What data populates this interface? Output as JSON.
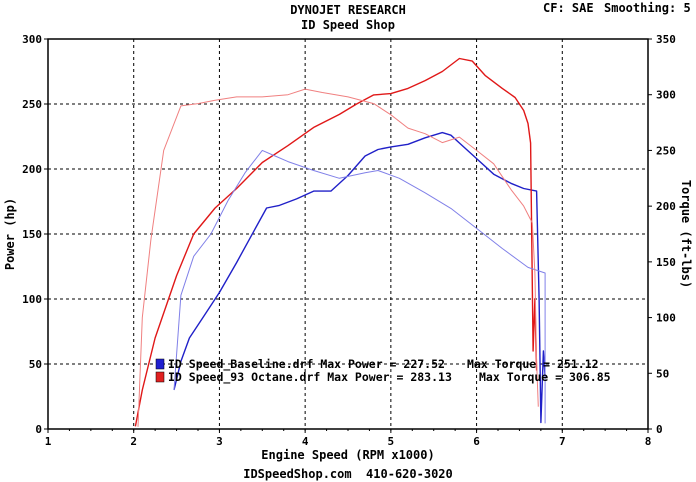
{
  "header": {
    "title": "DYNOJET RESEARCH",
    "subtitle": "ID Speed Shop",
    "correction": "CF: SAE",
    "smoothing": "Smoothing: 5"
  },
  "footer": {
    "text": "IDSpeedShop.com  410-620-3020"
  },
  "chart_data": {
    "type": "line",
    "title": "DYNOJET RESEARCH",
    "subtitle": "ID Speed Shop",
    "xlabel": "Engine Speed (RPM x1000)",
    "ylabel_left": "Power (hp)",
    "ylabel_right": "Torque (ft-lbs)",
    "xlim": [
      1,
      8
    ],
    "ylim_left": [
      0,
      300
    ],
    "ylim_right": [
      0,
      350
    ],
    "x_ticks": [
      "1",
      "2",
      "3",
      "4",
      "5",
      "6",
      "7",
      "8"
    ],
    "y_left_ticks": [
      "0",
      "50",
      "100",
      "150",
      "200",
      "250",
      "300"
    ],
    "y_right_ticks": [
      "0",
      "50",
      "100",
      "150",
      "200",
      "250",
      "300",
      "350"
    ],
    "grid": true,
    "legend_position": "bottom-left",
    "legend": [
      {
        "color": "#2020d0",
        "text": "ID Speed_Baseline.drf Max Power = 227.52",
        "torque": "Max Torque = 251.12"
      },
      {
        "color": "#e02020",
        "text": "ID Speed_93 Octane.drf Max Power = 283.13",
        "torque": "Max Torque = 306.85"
      }
    ],
    "series": [
      {
        "name": "ID Speed_Baseline.drf",
        "kind": "power",
        "axis": "left",
        "color": "#2020c8",
        "x": [
          2.47,
          2.55,
          2.65,
          2.8,
          3.0,
          3.2,
          3.4,
          3.55,
          3.7,
          3.9,
          4.1,
          4.3,
          4.5,
          4.7,
          4.85,
          5.0,
          5.2,
          5.4,
          5.6,
          5.7,
          5.8,
          6.0,
          6.2,
          6.4,
          6.55,
          6.7,
          6.73,
          6.75,
          6.78,
          6.8
        ],
        "y": [
          30,
          52,
          70,
          85,
          105,
          128,
          152,
          170,
          172,
          177,
          183,
          183,
          195,
          210,
          215,
          217,
          219,
          224,
          228,
          226,
          220,
          208,
          196,
          189,
          185,
          183,
          100,
          5,
          60,
          40
        ]
      },
      {
        "name": "ID Speed_93 Octane.drf",
        "kind": "power",
        "axis": "left",
        "color": "#e01818",
        "x": [
          2.02,
          2.1,
          2.25,
          2.5,
          2.7,
          2.95,
          3.2,
          3.5,
          3.8,
          4.1,
          4.4,
          4.6,
          4.8,
          5.0,
          5.2,
          5.4,
          5.6,
          5.8,
          5.95,
          6.1,
          6.3,
          6.45,
          6.55,
          6.6,
          6.63,
          6.66,
          6.68,
          6.7
        ],
        "y": [
          2,
          30,
          70,
          118,
          150,
          170,
          185,
          205,
          218,
          232,
          242,
          250,
          257,
          258,
          262,
          268,
          275,
          285,
          283,
          272,
          262,
          255,
          245,
          235,
          220,
          60,
          100,
          45
        ]
      },
      {
        "name": "ID Speed_Baseline.drf",
        "kind": "torque",
        "axis": "right",
        "color": "#8080e8",
        "x": [
          2.47,
          2.55,
          2.7,
          2.9,
          3.1,
          3.3,
          3.5,
          3.65,
          3.8,
          4.1,
          4.4,
          4.7,
          4.85,
          5.1,
          5.4,
          5.7,
          6.0,
          6.3,
          6.6,
          6.8,
          6.8
        ],
        "y": [
          35,
          120,
          155,
          175,
          205,
          230,
          250,
          245,
          240,
          232,
          225,
          230,
          232,
          225,
          212,
          198,
          180,
          162,
          145,
          140,
          5
        ]
      },
      {
        "name": "ID Speed_93 Octane.drf",
        "kind": "torque",
        "axis": "right",
        "color": "#f08080",
        "x": [
          2.05,
          2.1,
          2.2,
          2.35,
          2.55,
          2.75,
          2.95,
          3.2,
          3.5,
          3.8,
          4.0,
          4.2,
          4.5,
          4.8,
          5.0,
          5.2,
          5.4,
          5.6,
          5.8,
          6.0,
          6.2,
          6.4,
          6.55,
          6.65,
          6.68,
          6.7,
          6.72
        ],
        "y": [
          2,
          100,
          170,
          250,
          290,
          292,
          295,
          298,
          298,
          300,
          305,
          302,
          298,
          292,
          282,
          270,
          265,
          257,
          262,
          250,
          238,
          215,
          200,
          185,
          140,
          60,
          20
        ]
      }
    ]
  }
}
